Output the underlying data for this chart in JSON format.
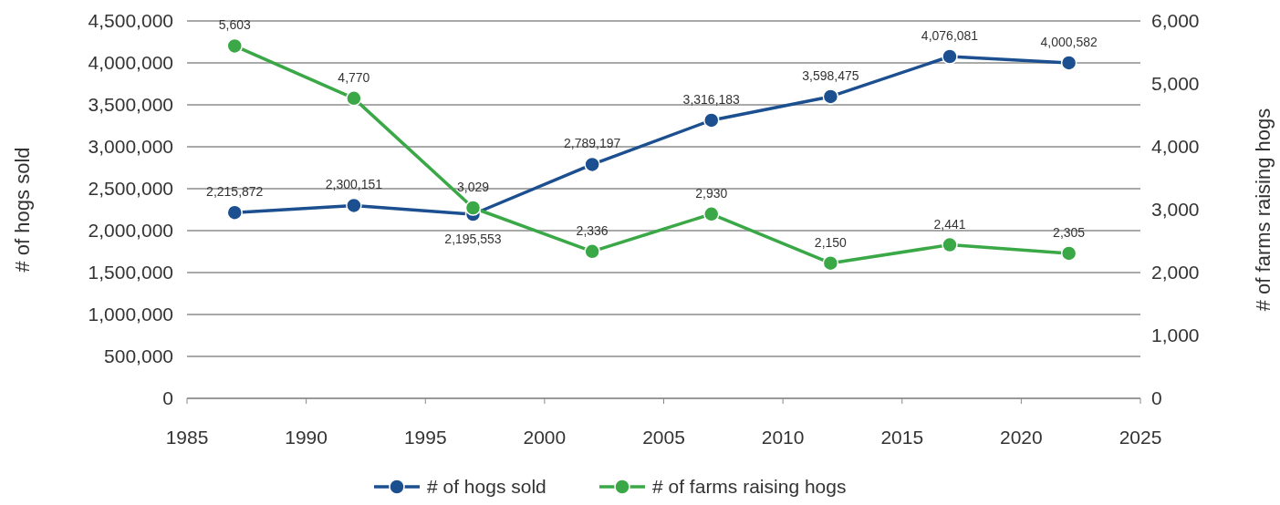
{
  "chart_data": {
    "type": "line",
    "x": [
      1987,
      1992,
      1997,
      2002,
      2007,
      2012,
      2017,
      2022
    ],
    "ylabel": "# of hogs sold",
    "y2label": "# of farms raising hogs",
    "xlim": [
      1985,
      2025
    ],
    "xticks": [
      1985,
      1990,
      1995,
      2000,
      2005,
      2010,
      2015,
      2020,
      2025
    ],
    "ylim": [
      0,
      4500000
    ],
    "yticks": [
      0,
      {
        "value": 500000,
        "label": "500,000"
      },
      {
        "value": 1000000,
        "label": "1,000,000"
      },
      {
        "value": 1500000,
        "label": "1,500,000"
      },
      {
        "value": 2000000,
        "label": "2,000,000"
      },
      {
        "value": 2500000,
        "label": "2,500,000"
      },
      {
        "value": 3000000,
        "label": "3,000,000"
      },
      {
        "value": 3500000,
        "label": "3,500,000"
      },
      {
        "value": 4000000,
        "label": "4,000,000"
      },
      {
        "value": 4500000,
        "label": "4,500,000"
      }
    ],
    "y2lim": [
      0,
      6000
    ],
    "y2ticks": [
      0,
      {
        "value": 1000,
        "label": "1,000"
      },
      {
        "value": 2000,
        "label": "2,000"
      },
      {
        "value": 3000,
        "label": "3,000"
      },
      {
        "value": 4000,
        "label": "4,000"
      },
      {
        "value": 5000,
        "label": "5,000"
      },
      {
        "value": 6000,
        "label": "6,000"
      }
    ],
    "series": [
      {
        "name": "# of hogs sold",
        "color": "#1b4f8f",
        "values": [
          2215872,
          2300151,
          2195553,
          2789197,
          3316183,
          3598475,
          4076081,
          4000582
        ],
        "value_labels": [
          "2,215,872",
          "2,300,151",
          "2,195,553",
          "2,789,197",
          "3,316,183",
          "3,598,475",
          "4,076,081",
          "4,000,582"
        ]
      },
      {
        "name": "# of farms raising hogs",
        "color": "#3aa846",
        "axis": "y2",
        "values": [
          5603,
          4770,
          3029,
          2336,
          2930,
          2150,
          2441,
          2305
        ],
        "value_labels": [
          "5,603",
          "4,770",
          "3,029",
          "2,336",
          "2,930",
          "2,150",
          "2,441",
          "2,305"
        ]
      }
    ],
    "grid": "y",
    "legend": "bottom",
    "marker": "circle",
    "line_style": "solid"
  }
}
